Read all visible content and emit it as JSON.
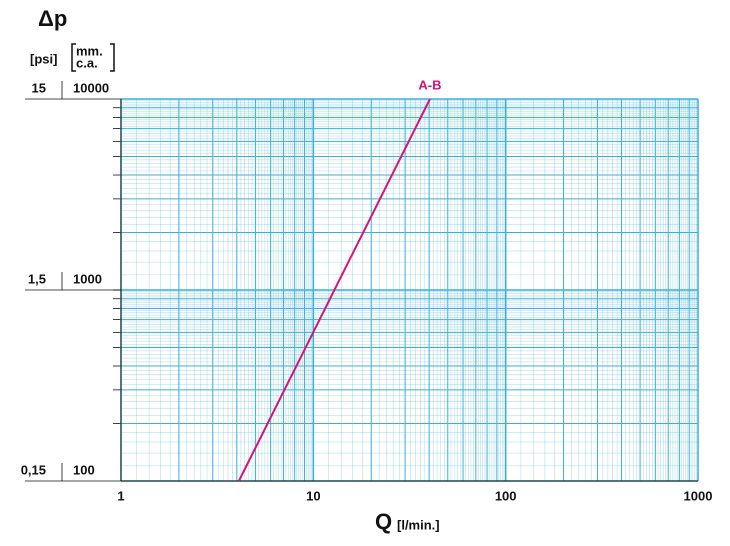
{
  "chart_data": {
    "type": "line",
    "y_label": "Δp",
    "y2_unit": "[psi]",
    "y_unit": [
      "mm.",
      "c.a."
    ],
    "x_label": "Q",
    "x_unit": "[l/min.]",
    "xscale": "log",
    "yscale": "log",
    "xlim": [
      1,
      1000
    ],
    "xticks": [
      1,
      10,
      100,
      1000
    ],
    "ylim": [
      100,
      10000
    ],
    "yticks": [
      100,
      1000,
      10000
    ],
    "y2lim": [
      0.15,
      15
    ],
    "y2ticks": [
      {
        "value": 0.15,
        "label": "0,15"
      },
      {
        "value": 1.5,
        "label": "1,5"
      },
      {
        "value": 15,
        "label": "15"
      }
    ],
    "grid": true,
    "grid_color": "#3aafd9",
    "x": [
      4.1,
      40.4
    ],
    "series": [
      {
        "name": "A-B",
        "color": "#d4147c",
        "values": [
          100,
          10000
        ]
      }
    ]
  }
}
